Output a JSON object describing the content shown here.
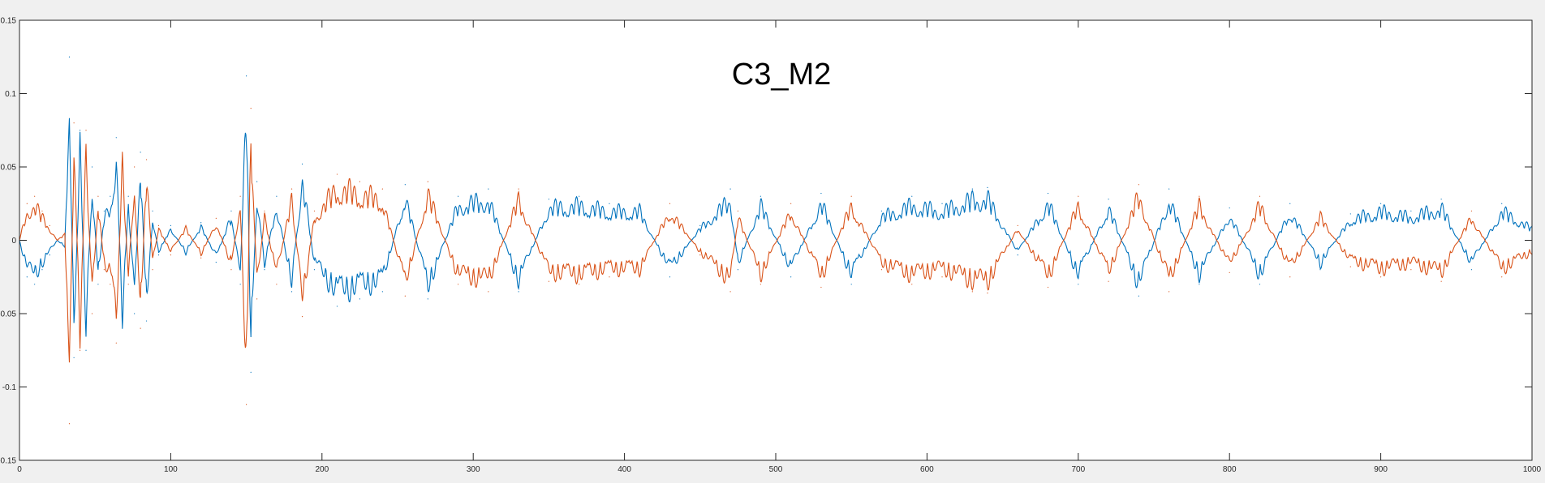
{
  "chart_data": {
    "type": "line",
    "title": "C3_M2",
    "xlabel": "",
    "ylabel": "",
    "xlim": [
      0,
      1000
    ],
    "ylim": [
      -0.15,
      0.15
    ],
    "x_ticks": [
      "0",
      "100",
      "200",
      "300",
      "400",
      "500",
      "600",
      "700",
      "800",
      "900",
      "1000"
    ],
    "y_ticks": [
      "0.15",
      "0.1",
      "0.05",
      "0",
      "-0.05",
      "-0.1",
      "-0.15"
    ],
    "grid": false,
    "colors": {
      "series1": "#0072BD",
      "series2": "#D95319",
      "axes_background": "#ffffff",
      "figure_background": "#f0f0f0"
    },
    "note_envelope": "series are mirror images: the signal alternates between an upper and lower envelope; values below are the envelope amplitude at selected sample indices",
    "series": [
      {
        "x": [
          0,
          5,
          10,
          15,
          20,
          25,
          30,
          33,
          36,
          40,
          44,
          48,
          52,
          56,
          60,
          64,
          68,
          72,
          76,
          80,
          84,
          88,
          92,
          100,
          110,
          120,
          130,
          140,
          146,
          150,
          153,
          157,
          162,
          170,
          180,
          187,
          195,
          210,
          225,
          240,
          255,
          270,
          290,
          310,
          330,
          350,
          370,
          390,
          410,
          430,
          450,
          470,
          475,
          490,
          510,
          530,
          550,
          570,
          590,
          610,
          630,
          640,
          660,
          680,
          700,
          720,
          740,
          760,
          780,
          800,
          820,
          840,
          860,
          880,
          900,
          920,
          940,
          960,
          980,
          1000
        ],
        "values": [
          0.0,
          -0.025,
          -0.03,
          -0.02,
          -0.01,
          0.0,
          -0.005,
          0.125,
          -0.08,
          0.075,
          -0.075,
          0.05,
          -0.03,
          0.02,
          0.03,
          0.07,
          -0.06,
          0.03,
          -0.05,
          0.06,
          -0.055,
          0.02,
          -0.01,
          0.01,
          -0.01,
          0.012,
          -0.015,
          0.02,
          -0.03,
          0.112,
          -0.09,
          0.04,
          -0.02,
          0.03,
          -0.035,
          0.052,
          -0.02,
          -0.045,
          -0.04,
          -0.035,
          0.038,
          -0.04,
          0.03,
          0.035,
          -0.035,
          0.028,
          0.03,
          0.025,
          0.025,
          -0.025,
          0.01,
          0.035,
          -0.02,
          0.03,
          -0.025,
          0.032,
          -0.03,
          0.02,
          0.03,
          0.025,
          0.035,
          0.036,
          -0.01,
          0.032,
          -0.03,
          0.028,
          -0.038,
          0.035,
          -0.03,
          0.022,
          -0.03,
          0.025,
          -0.02,
          0.018,
          0.025,
          0.02,
          0.028,
          -0.02,
          0.025,
          0.01
        ]
      },
      {
        "x": [
          0,
          5,
          10,
          15,
          20,
          25,
          30,
          33,
          36,
          40,
          44,
          48,
          52,
          56,
          60,
          64,
          68,
          72,
          76,
          80,
          84,
          88,
          92,
          100,
          110,
          120,
          130,
          140,
          146,
          150,
          153,
          157,
          162,
          170,
          180,
          187,
          195,
          210,
          225,
          240,
          255,
          270,
          290,
          310,
          330,
          350,
          370,
          390,
          410,
          430,
          450,
          470,
          475,
          490,
          510,
          530,
          550,
          570,
          590,
          610,
          630,
          640,
          660,
          680,
          700,
          720,
          740,
          760,
          780,
          800,
          820,
          840,
          860,
          880,
          900,
          920,
          940,
          960,
          980,
          1000
        ],
        "values": [
          0.0,
          0.025,
          0.03,
          0.02,
          0.01,
          0.0,
          0.005,
          -0.125,
          0.08,
          -0.075,
          0.075,
          -0.05,
          0.03,
          -0.02,
          -0.03,
          -0.07,
          0.06,
          -0.03,
          0.05,
          -0.06,
          0.055,
          -0.02,
          0.01,
          -0.01,
          0.01,
          -0.012,
          0.015,
          -0.02,
          0.03,
          -0.112,
          0.09,
          -0.04,
          0.02,
          -0.03,
          0.035,
          -0.052,
          0.02,
          0.045,
          0.04,
          0.035,
          -0.038,
          0.04,
          -0.03,
          -0.035,
          0.035,
          -0.028,
          -0.03,
          -0.025,
          -0.025,
          0.025,
          -0.01,
          -0.035,
          0.02,
          -0.03,
          0.025,
          -0.032,
          0.03,
          -0.02,
          -0.03,
          -0.025,
          -0.035,
          -0.036,
          0.01,
          -0.032,
          0.03,
          -0.028,
          0.038,
          -0.035,
          0.03,
          -0.022,
          0.03,
          -0.025,
          0.02,
          -0.018,
          -0.025,
          -0.02,
          -0.028,
          0.02,
          -0.025,
          -0.01
        ]
      }
    ]
  }
}
